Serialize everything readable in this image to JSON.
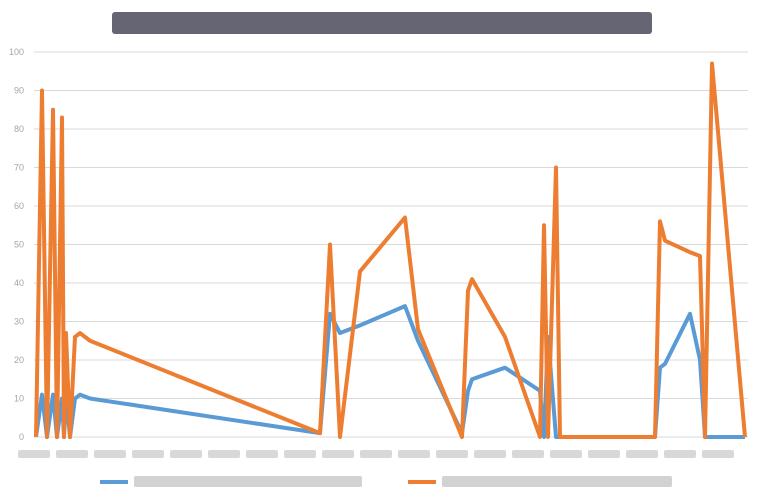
{
  "chart_data": {
    "type": "line",
    "title": "",
    "xlabel": "",
    "ylabel": "",
    "ylim": [
      0,
      100
    ],
    "yticks": [
      0,
      10,
      20,
      30,
      40,
      50,
      60,
      70,
      80,
      90,
      100
    ],
    "grid": true,
    "legend_position": "bottom",
    "colors": {
      "blue": "#5b9bd5",
      "orange": "#ed7d31",
      "grid": "#d9d9d9",
      "title": "#4a4a5a"
    },
    "x": [
      0,
      1,
      2,
      3,
      4,
      5,
      6,
      7,
      8,
      9,
      10,
      11,
      12,
      13,
      14,
      15,
      16,
      17,
      18,
      19,
      20,
      21,
      22,
      23,
      24,
      25,
      26,
      27,
      28,
      29,
      30,
      31,
      32,
      33,
      34,
      35,
      36,
      37,
      38,
      39,
      40,
      41,
      42,
      43,
      44,
      45,
      46,
      47,
      48,
      49,
      50,
      51,
      52,
      53,
      54,
      55,
      56,
      57,
      58,
      59,
      60,
      61,
      62,
      63,
      64,
      65,
      66,
      67,
      68,
      69,
      70,
      71,
      72,
      73,
      74,
      75,
      76,
      77
    ],
    "series": [
      {
        "name": "",
        "color": "#5b9bd5",
        "values": [
          0,
          11,
          0,
          11,
          0,
          10,
          0,
          11,
          0,
          10,
          11,
          10,
          1,
          32,
          27,
          29,
          34,
          25,
          1,
          12,
          15,
          18,
          12,
          0,
          26,
          0,
          0,
          0,
          0,
          0,
          0,
          0,
          18,
          19,
          32,
          20,
          0,
          0,
          0,
          0,
          0,
          0,
          0,
          0,
          0,
          0,
          0,
          0,
          0,
          0,
          0,
          0,
          0,
          0,
          0,
          0,
          0,
          0,
          0,
          0,
          0,
          0,
          0,
          0,
          0,
          0,
          0,
          0,
          0,
          0,
          0,
          0,
          0,
          0,
          0,
          0,
          0,
          0
        ]
      },
      {
        "name": "",
        "color": "#ed7d31",
        "values": [
          0,
          90,
          0,
          85,
          0,
          83,
          0,
          27,
          0,
          26,
          27,
          25,
          1,
          50,
          0,
          43,
          57,
          28,
          0,
          38,
          41,
          26,
          0,
          55,
          0,
          70,
          0,
          0,
          0,
          0,
          0,
          0,
          56,
          51,
          48,
          47,
          0,
          97,
          0,
          0,
          0,
          0,
          0,
          0,
          0,
          0,
          0,
          0,
          0,
          0,
          0,
          0,
          0,
          0,
          0,
          0,
          0,
          0,
          0,
          0,
          0,
          0,
          0,
          0,
          0,
          0,
          0,
          0,
          0,
          0,
          0,
          0,
          0,
          0,
          0,
          0,
          0,
          0
        ]
      }
    ],
    "x_positions_note_free": true
  }
}
